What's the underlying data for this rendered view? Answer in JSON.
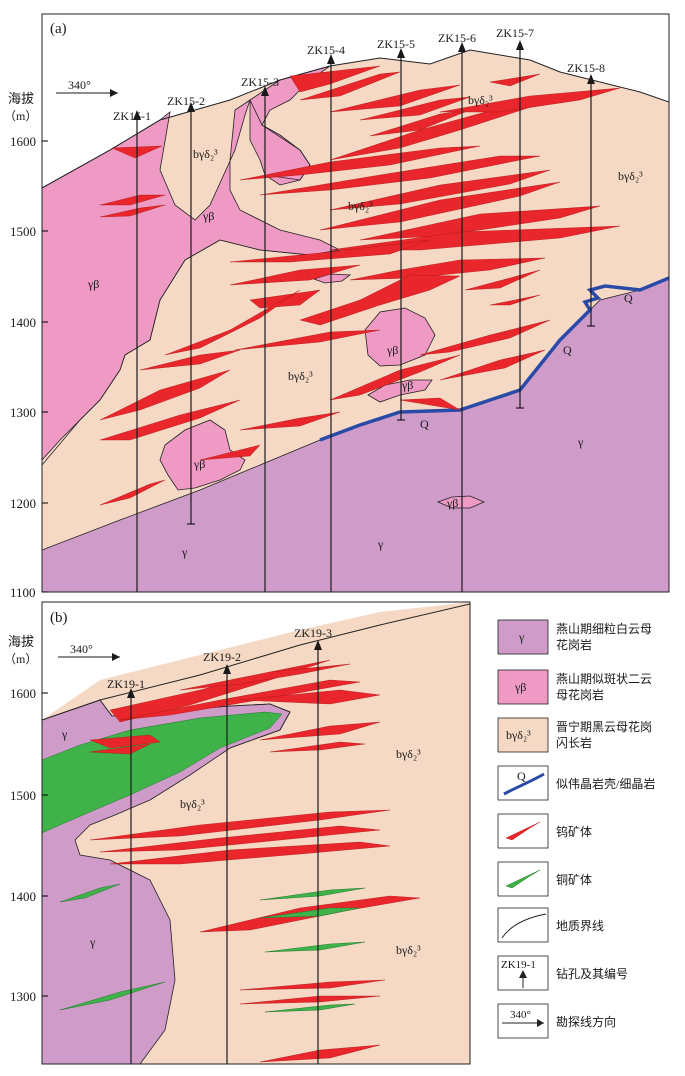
{
  "panel_a": {
    "label": "(a)",
    "axis_title": "海拔",
    "axis_unit": "（m）",
    "ticks": [
      "1600",
      "1500",
      "1400",
      "1300",
      "1200",
      "1100"
    ],
    "direction": "340°",
    "holes": [
      "ZK15-1",
      "ZK15-2",
      "ZK15-3",
      "ZK15-4",
      "ZK15-5",
      "ZK15-6",
      "ZK15-7",
      "ZK15-8"
    ],
    "unit_labels": {
      "gamma": "γ",
      "gamma_beta": "γβ",
      "b_gamma_delta": "bγδ₂³",
      "q": "Q"
    }
  },
  "panel_b": {
    "label": "(b)",
    "axis_title": "海拔",
    "axis_unit": "（m）",
    "ticks": [
      "1600",
      "1500",
      "1400",
      "1300"
    ],
    "direction": "340°",
    "holes": [
      "ZK19-1",
      "ZK19-2",
      "ZK19-3"
    ],
    "unit_labels": {
      "gamma": "γ",
      "b_gamma_delta": "bγδ₂³"
    }
  },
  "legend": {
    "items": [
      {
        "symbol": "γ",
        "text_lines": [
          "燕山期细粒白云母",
          "花岗岩"
        ],
        "color": "#cf9cc9"
      },
      {
        "symbol": "γβ",
        "text_lines": [
          "燕山期似斑状二云",
          "母花岗岩"
        ],
        "color": "#ee9ac4"
      },
      {
        "symbol": "bγδ₂³",
        "text_lines": [
          "晋宁期黑云母花岗",
          "闪长岩"
        ],
        "color": "#f6d9c4"
      },
      {
        "symbol": "Q",
        "text_lines": [
          "似伟晶岩壳/细晶岩"
        ]
      },
      {
        "symbol": "",
        "text_lines": [
          "钨矿体"
        ]
      },
      {
        "symbol": "",
        "text_lines": [
          "铜矿体"
        ]
      },
      {
        "symbol": "",
        "text_lines": [
          "地质界线"
        ]
      },
      {
        "symbol": "ZK19-1",
        "text_lines": [
          "钻孔及其编号"
        ]
      },
      {
        "symbol": "340°",
        "text_lines": [
          "勘探线方向"
        ]
      }
    ]
  },
  "colors": {
    "gamma": "#cf9cc9",
    "gamma_beta": "#ee9ac4",
    "b_gamma_delta": "#f6d9c4",
    "tungsten": "#e8262b",
    "copper": "#3fb24a",
    "pegmatite": "#2a4aa8"
  }
}
